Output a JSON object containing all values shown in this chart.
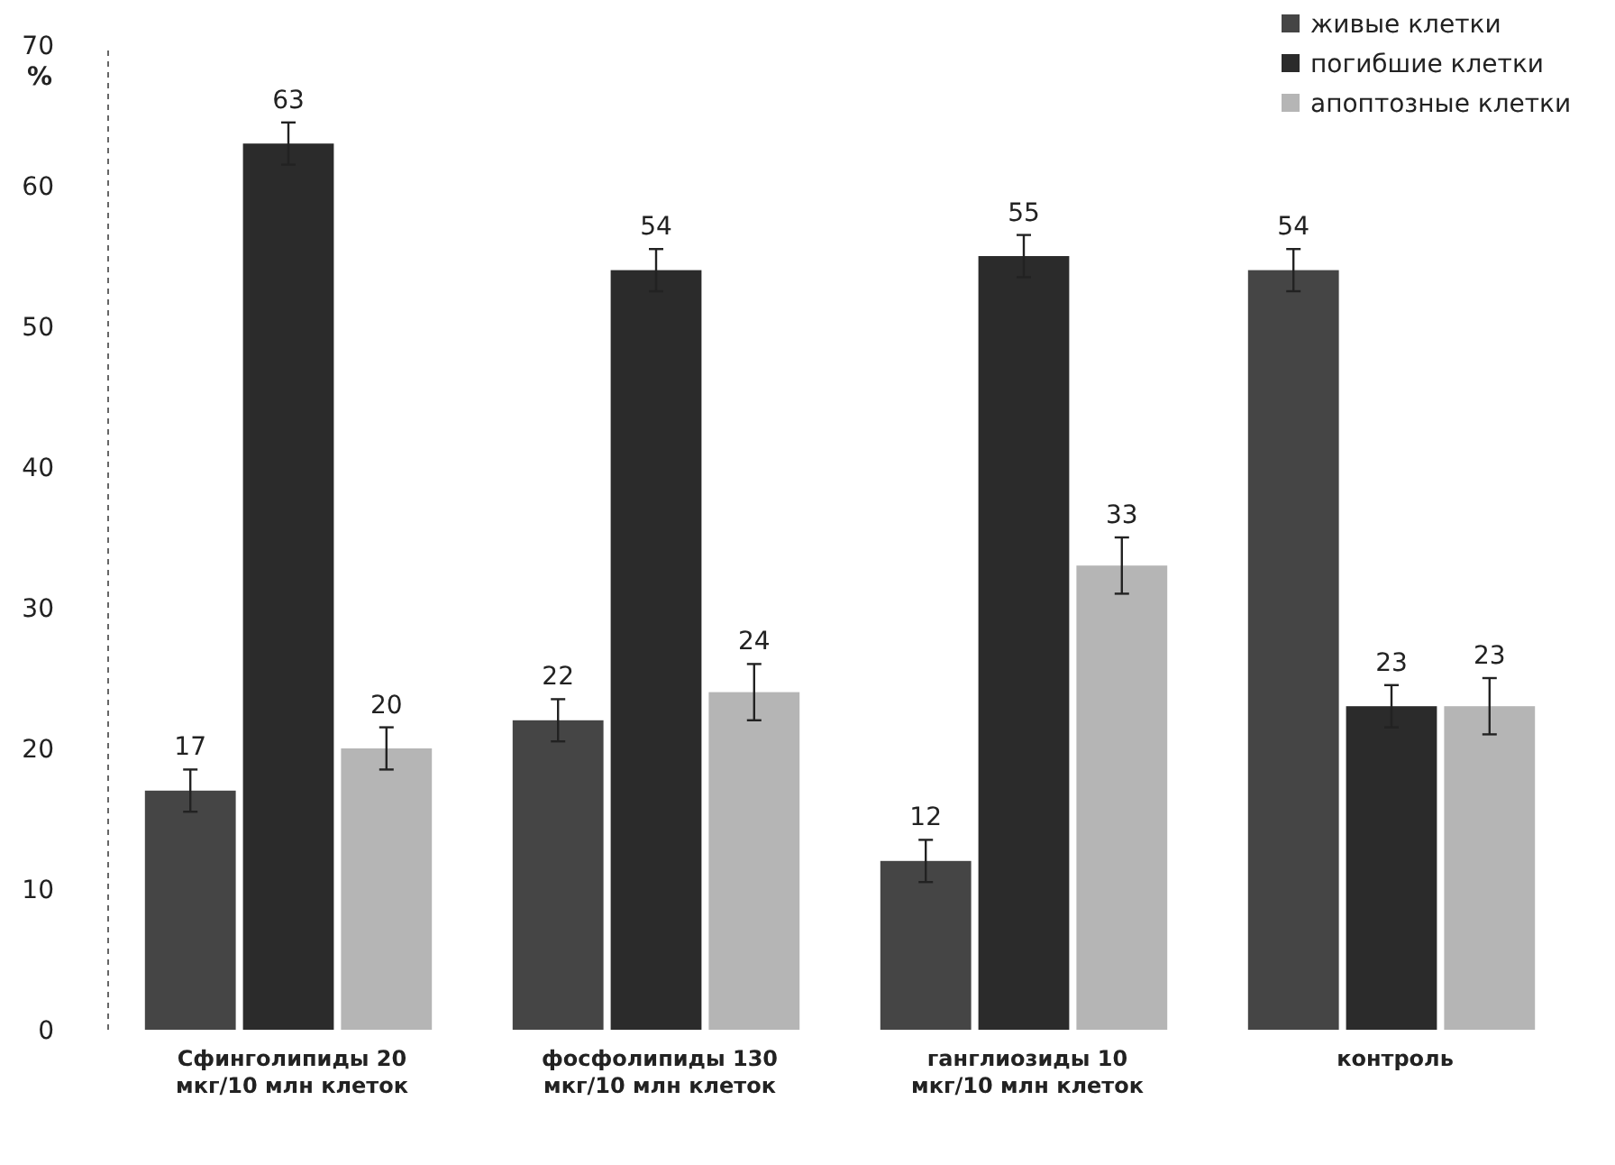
{
  "chart_data": {
    "type": "bar",
    "ylabel": "%",
    "categories": [
      "Сфинголипиды 20 мкг/10 млн клеток",
      "фосфолипиды 130 мкг/10 млн клеток",
      "ганглиозиды 10 мкг/10 млн клеток",
      "контроль"
    ],
    "series": [
      {
        "name": "живые клетки",
        "color": "#454545",
        "values": [
          17,
          22,
          12,
          54
        ],
        "errors": [
          1.5,
          1.5,
          1.5,
          1.5
        ]
      },
      {
        "name": "погибшие клетки",
        "color": "#2b2b2b",
        "values": [
          63,
          54,
          55,
          23
        ],
        "errors": [
          1.5,
          1.5,
          1.5,
          1.5
        ]
      },
      {
        "name": "апоптозные клетки",
        "color": "#b5b5b5",
        "values": [
          20,
          24,
          33,
          23
        ],
        "errors": [
          1.5,
          2,
          2,
          2
        ]
      }
    ],
    "ylim": [
      0,
      70
    ],
    "yticks": [
      0,
      10,
      20,
      30,
      40,
      50,
      60,
      70
    ],
    "data_labels": true,
    "legend": "top right",
    "grid": false
  }
}
